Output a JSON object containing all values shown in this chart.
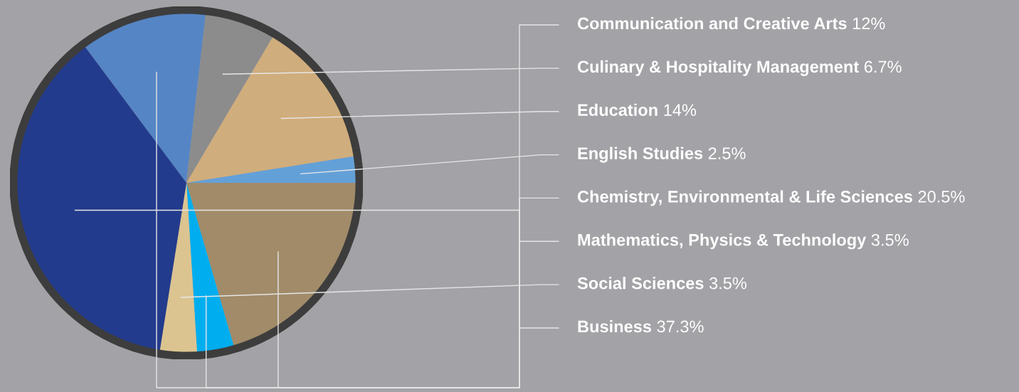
{
  "chart_data": {
    "type": "pie",
    "categories": [
      "Communication and Creative Arts",
      "Culinary & Hospitality Management",
      "Education",
      "English Studies",
      "Chemistry, Environmental & Life Sciences",
      "Mathematics, Physics & Technology",
      "Social Sciences",
      "Business"
    ],
    "values": [
      12,
      6.7,
      14,
      2.5,
      20.5,
      3.5,
      3.5,
      37.3
    ],
    "value_labels": [
      "12%",
      "6.7%",
      "14%",
      "2.5%",
      "20.5%",
      "3.5%",
      "3.5%",
      "37.3%"
    ],
    "colors": [
      "#5585c5",
      "#8c8c8c",
      "#d0ad7c",
      "#64a0d8",
      "#a18b69",
      "#00aeef",
      "#dcc490",
      "#233b8c"
    ]
  }
}
